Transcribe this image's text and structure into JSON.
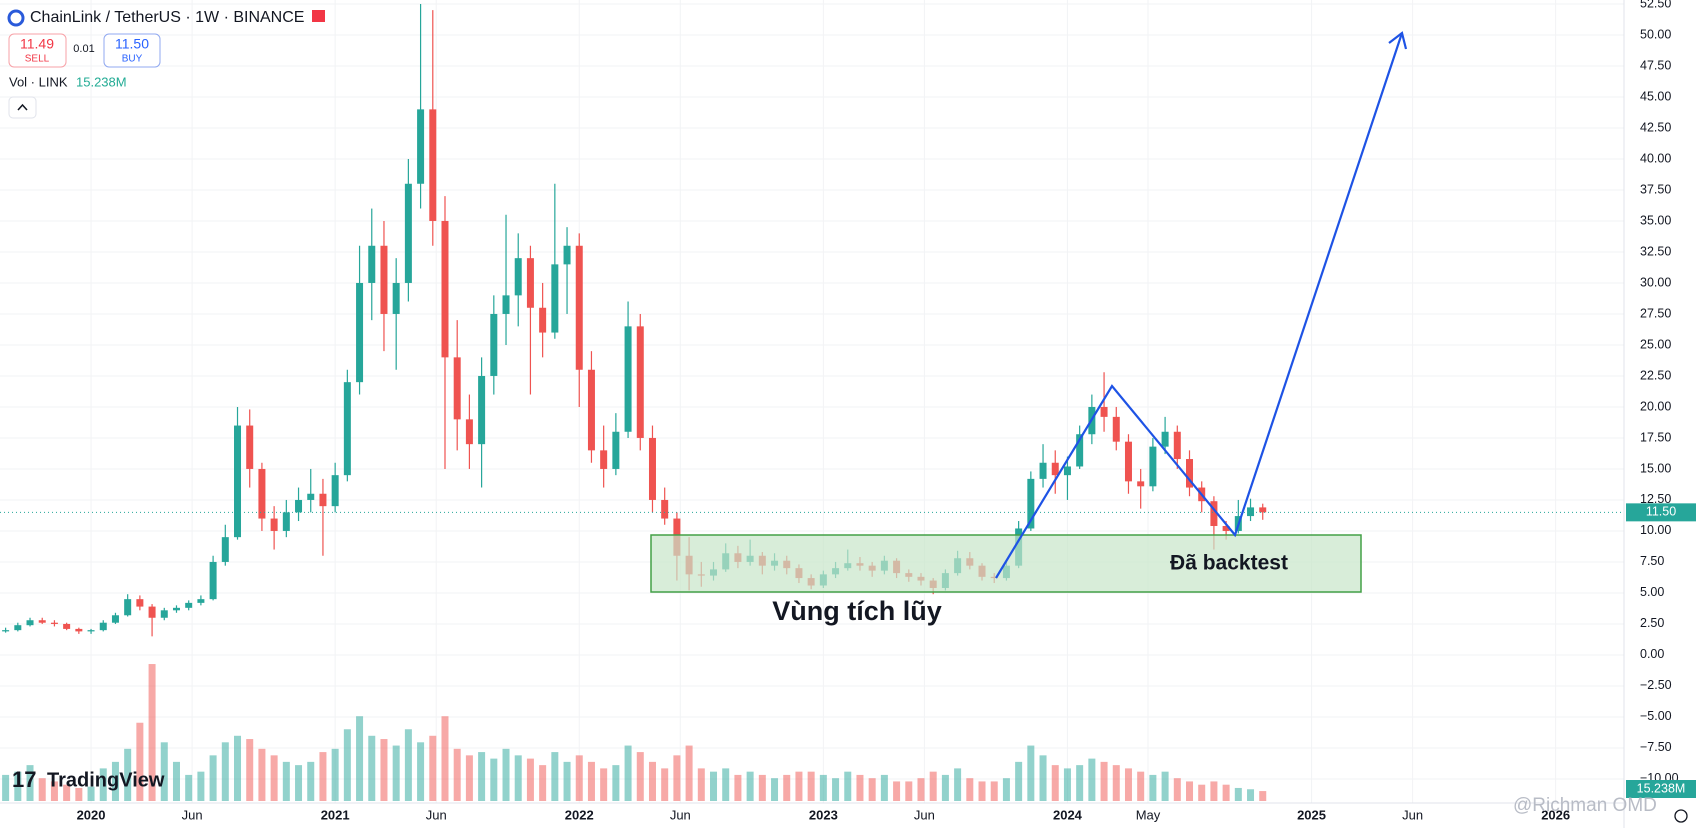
{
  "chart_data": {
    "type": "candlestick",
    "title": "ChainLink / TetherUS · 1W · BINANCE",
    "sell_price": "11.49",
    "sell_label": "SELL",
    "spread": "0.01",
    "buy_price": "11.50",
    "buy_label": "BUY",
    "volume_label": "Vol · LINK",
    "volume_value_label": "15.238M",
    "last_price_label": "11.50",
    "logo": "TradingView",
    "watermark": "@Richman OMD",
    "annotations": [
      "Vùng tích lũy",
      "Đã backtest"
    ],
    "up_color": "#26a69a",
    "down_color": "#ef5350",
    "grid": true,
    "xlim": [
      2019.627,
      2026.28
    ],
    "ylim": [
      -11.94,
      52.82
    ],
    "volume_lim": [
      0,
      230
    ],
    "xticks": [
      {
        "value": 2020,
        "label": "2020"
      },
      {
        "value": 2020.414,
        "label": "Jun"
      },
      {
        "value": 2021,
        "label": "2021"
      },
      {
        "value": 2021.414,
        "label": "Jun"
      },
      {
        "value": 2022,
        "label": "2022"
      },
      {
        "value": 2022.414,
        "label": "Jun"
      },
      {
        "value": 2023,
        "label": "2023"
      },
      {
        "value": 2023.414,
        "label": "Jun"
      },
      {
        "value": 2024,
        "label": "2024"
      },
      {
        "value": 2024.33,
        "label": "May"
      },
      {
        "value": 2025,
        "label": "2025"
      },
      {
        "value": 2025.414,
        "label": "Jun"
      },
      {
        "value": 2026,
        "label": "2026"
      }
    ],
    "yticks": [
      {
        "value": -10,
        "label": "−10.00"
      },
      {
        "value": -7.5,
        "label": "−7.50"
      },
      {
        "value": -5,
        "label": "−5.00"
      },
      {
        "value": -2.5,
        "label": "−2.50"
      },
      {
        "value": 0,
        "label": "0.00"
      },
      {
        "value": 2.5,
        "label": "2.50"
      },
      {
        "value": 5,
        "label": "5.00"
      },
      {
        "value": 7.5,
        "label": "7.50"
      },
      {
        "value": 10,
        "label": "10.00"
      },
      {
        "value": 12.5,
        "label": "12.50"
      },
      {
        "value": 15,
        "label": "15.00"
      },
      {
        "value": 17.5,
        "label": "17.50"
      },
      {
        "value": 20,
        "label": "20.00"
      },
      {
        "value": 22.5,
        "label": "22.50"
      },
      {
        "value": 25,
        "label": "25.00"
      },
      {
        "value": 27.5,
        "label": "27.50"
      },
      {
        "value": 30,
        "label": "30.00"
      },
      {
        "value": 32.5,
        "label": "32.50"
      },
      {
        "value": 35,
        "label": "35.00"
      },
      {
        "value": 37.5,
        "label": "37.50"
      },
      {
        "value": 40,
        "label": "40.00"
      },
      {
        "value": 42.5,
        "label": "42.50"
      },
      {
        "value": 45,
        "label": "45.00"
      },
      {
        "value": 47.5,
        "label": "47.50"
      },
      {
        "value": 50,
        "label": "50.00"
      },
      {
        "value": 52.5,
        "label": "52.50"
      }
    ],
    "x": [
      2019.65,
      2019.7,
      2019.75,
      2019.8,
      2019.85,
      2019.9,
      2019.95,
      2020.0,
      2020.05,
      2020.1,
      2020.15,
      2020.2,
      2020.25,
      2020.3,
      2020.35,
      2020.4,
      2020.45,
      2020.5,
      2020.55,
      2020.6,
      2020.65,
      2020.7,
      2020.75,
      2020.8,
      2020.85,
      2020.9,
      2020.95,
      2021.0,
      2021.05,
      2021.1,
      2021.15,
      2021.2,
      2021.25,
      2021.3,
      2021.35,
      2021.4,
      2021.45,
      2021.5,
      2021.55,
      2021.6,
      2021.65,
      2021.7,
      2021.75,
      2021.8,
      2021.85,
      2021.9,
      2021.95,
      2022.0,
      2022.05,
      2022.1,
      2022.15,
      2022.2,
      2022.25,
      2022.3,
      2022.35,
      2022.4,
      2022.45,
      2022.5,
      2022.55,
      2022.6,
      2022.65,
      2022.7,
      2022.75,
      2022.8,
      2022.85,
      2022.9,
      2022.95,
      2023.0,
      2023.05,
      2023.1,
      2023.15,
      2023.2,
      2023.25,
      2023.3,
      2023.35,
      2023.4,
      2023.45,
      2023.5,
      2023.55,
      2023.6,
      2023.65,
      2023.7,
      2023.75,
      2023.8,
      2023.85,
      2023.9,
      2023.95,
      2024.0,
      2024.05,
      2024.1,
      2024.15,
      2024.2,
      2024.25,
      2024.3,
      2024.35,
      2024.4,
      2024.45,
      2024.5,
      2024.55,
      2024.6,
      2024.65,
      2024.7,
      2024.75,
      2024.8
    ],
    "open": [
      1.9,
      2.0,
      2.4,
      2.8,
      2.6,
      2.5,
      2.1,
      1.9,
      2.0,
      2.6,
      3.2,
      4.5,
      3.9,
      3.0,
      3.6,
      3.8,
      4.2,
      4.5,
      7.5,
      9.5,
      18.5,
      15.0,
      11.0,
      10.0,
      11.5,
      12.5,
      13.0,
      12.0,
      14.5,
      22.0,
      30.0,
      33.0,
      27.5,
      30.0,
      38.0,
      44.0,
      35.0,
      24.0,
      19.0,
      17.0,
      22.5,
      27.5,
      29.0,
      32.0,
      28.0,
      26.0,
      31.5,
      33.0,
      23.0,
      16.5,
      15.0,
      18.0,
      26.5,
      17.5,
      12.5,
      11.0,
      8.0,
      6.5,
      6.4,
      6.9,
      8.2,
      7.5,
      8.0,
      7.2,
      7.6,
      7.0,
      6.2,
      5.6,
      6.5,
      7.0,
      7.4,
      7.2,
      6.8,
      7.6,
      6.6,
      6.3,
      6.0,
      5.4,
      6.6,
      7.8,
      7.2,
      6.3,
      6.2,
      7.2,
      10.2,
      14.2,
      15.5,
      14.5,
      15.2,
      17.8,
      20.0,
      19.2,
      17.2,
      14.0,
      13.6,
      16.8,
      18.0,
      15.8,
      13.5,
      12.4,
      10.4,
      10.0,
      11.2,
      11.9
    ],
    "high": [
      2.2,
      2.6,
      3.0,
      3.0,
      2.8,
      2.6,
      2.2,
      2.1,
      2.8,
      3.4,
      4.9,
      4.8,
      4.1,
      3.8,
      4.0,
      4.4,
      4.8,
      8.0,
      10.5,
      20.0,
      19.8,
      15.5,
      12.0,
      12.5,
      13.5,
      15.0,
      14.2,
      15.5,
      23.0,
      33.0,
      36.0,
      35.0,
      32.0,
      40.0,
      52.5,
      52.0,
      37.0,
      27.0,
      21.0,
      24.0,
      29.0,
      35.5,
      34.0,
      33.0,
      30.0,
      38.0,
      34.5,
      34.0,
      24.5,
      18.5,
      19.5,
      28.5,
      27.5,
      18.5,
      13.5,
      11.5,
      9.5,
      7.5,
      7.5,
      9.0,
      8.8,
      9.3,
      8.3,
      8.2,
      8.0,
      7.3,
      6.5,
      6.8,
      7.5,
      8.5,
      7.9,
      7.5,
      8.0,
      7.8,
      6.9,
      6.6,
      6.2,
      6.9,
      8.4,
      8.3,
      7.4,
      6.6,
      7.6,
      10.8,
      14.8,
      17.0,
      16.5,
      16.0,
      18.5,
      21.0,
      22.8,
      20.0,
      17.8,
      15.0,
      17.5,
      19.2,
      18.5,
      16.5,
      14.0,
      12.8,
      10.8,
      12.5,
      12.6,
      12.2
    ],
    "low": [
      1.8,
      1.9,
      2.3,
      2.5,
      2.3,
      2.0,
      1.7,
      1.7,
      1.9,
      2.5,
      3.1,
      3.6,
      1.5,
      2.8,
      3.4,
      3.6,
      4.0,
      4.4,
      7.2,
      9.3,
      13.5,
      10.0,
      8.5,
      9.5,
      10.8,
      11.5,
      8.0,
      11.5,
      14.0,
      21.0,
      27.0,
      24.5,
      23.0,
      28.5,
      36.0,
      33.0,
      15.0,
      16.5,
      15.0,
      13.5,
      21.0,
      25.0,
      26.5,
      21.0,
      24.0,
      25.5,
      27.5,
      20.0,
      15.5,
      13.5,
      14.5,
      17.5,
      16.5,
      11.5,
      10.5,
      6.0,
      5.2,
      5.5,
      6.0,
      6.7,
      7.0,
      7.2,
      6.5,
      6.8,
      6.5,
      5.8,
      5.3,
      5.4,
      6.2,
      6.8,
      6.8,
      6.3,
      6.5,
      6.2,
      5.9,
      5.6,
      4.9,
      5.2,
      6.4,
      6.9,
      6.0,
      5.8,
      6.0,
      7.0,
      10.0,
      13.5,
      13.0,
      12.5,
      15.0,
      17.0,
      18.0,
      16.5,
      13.0,
      11.8,
      13.2,
      16.2,
      15.0,
      12.8,
      11.5,
      8.5,
      9.3,
      9.8,
      10.8,
      10.9
    ],
    "close": [
      2.0,
      2.4,
      2.8,
      2.6,
      2.5,
      2.1,
      1.9,
      2.0,
      2.6,
      3.2,
      4.5,
      3.9,
      3.0,
      3.6,
      3.8,
      4.2,
      4.5,
      7.5,
      9.5,
      18.5,
      15.0,
      11.0,
      10.0,
      11.5,
      12.5,
      13.0,
      12.0,
      14.5,
      22.0,
      30.0,
      33.0,
      27.5,
      30.0,
      38.0,
      44.0,
      35.0,
      24.0,
      19.0,
      17.0,
      22.5,
      27.5,
      29.0,
      32.0,
      28.0,
      26.0,
      31.5,
      33.0,
      23.0,
      16.5,
      15.0,
      18.0,
      26.5,
      17.5,
      12.5,
      11.0,
      8.0,
      6.5,
      6.4,
      6.9,
      8.2,
      7.5,
      8.0,
      7.2,
      7.6,
      7.0,
      6.2,
      5.6,
      6.5,
      7.0,
      7.4,
      7.2,
      6.8,
      7.6,
      6.6,
      6.3,
      6.0,
      5.4,
      6.6,
      7.8,
      7.2,
      6.3,
      6.2,
      7.2,
      10.2,
      14.2,
      15.5,
      14.5,
      15.2,
      17.8,
      20.0,
      19.2,
      17.2,
      14.0,
      13.6,
      16.8,
      18.0,
      15.8,
      13.5,
      12.4,
      10.4,
      10.0,
      11.2,
      11.9,
      11.5
    ],
    "volume": [
      40,
      45,
      55,
      35,
      30,
      25,
      20,
      22,
      50,
      60,
      80,
      120,
      210,
      90,
      60,
      40,
      45,
      70,
      90,
      100,
      95,
      80,
      70,
      60,
      55,
      60,
      75,
      80,
      110,
      130,
      100,
      95,
      85,
      110,
      90,
      100,
      130,
      80,
      70,
      75,
      65,
      80,
      70,
      65,
      55,
      75,
      60,
      70,
      60,
      50,
      55,
      85,
      75,
      60,
      50,
      70,
      85,
      50,
      45,
      50,
      40,
      45,
      40,
      35,
      40,
      45,
      45,
      40,
      35,
      45,
      40,
      35,
      40,
      30,
      30,
      35,
      45,
      40,
      50,
      35,
      30,
      30,
      35,
      60,
      85,
      70,
      55,
      50,
      55,
      65,
      60,
      55,
      50,
      45,
      40,
      45,
      35,
      30,
      25,
      30,
      25,
      20,
      18,
      15.238
    ]
  }
}
